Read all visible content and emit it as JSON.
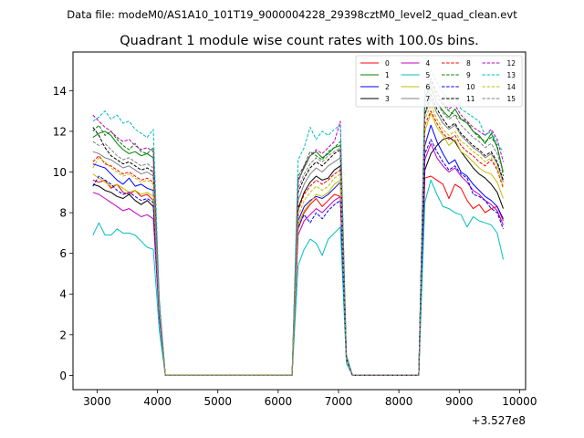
{
  "header_note": "Data file: modeM0/AS1A10_101T19_9000004228_29398cztM0_level2_quad_clean.evt",
  "chart_data": {
    "type": "line",
    "title": "Quadrant 1 module wise count rates with 100.0s bins.",
    "xlabel": "",
    "ylabel": "",
    "x_offset_label": "+3.527e8",
    "xlim": [
      2600,
      10100
    ],
    "ylim": [
      -0.7,
      15.9
    ],
    "x_ticks": [
      3000,
      4000,
      5000,
      6000,
      7000,
      8000,
      9000,
      10000
    ],
    "x_tick_labels": [
      "3000",
      "4000",
      "5000",
      "6000",
      "7000",
      "8000",
      "9000",
      "10000"
    ],
    "y_ticks": [
      0,
      2,
      4,
      6,
      8,
      10,
      12,
      14
    ],
    "y_tick_labels": [
      "0",
      "2",
      "4",
      "6",
      "8",
      "10",
      "12",
      "14"
    ],
    "x": [
      2930,
      3030,
      3130,
      3230,
      3330,
      3430,
      3530,
      3630,
      3730,
      3830,
      3930,
      4030,
      4130,
      4230,
      6130,
      6230,
      6330,
      6430,
      6530,
      6630,
      6730,
      6830,
      6930,
      7030,
      7130,
      7230,
      7330,
      8230,
      8330,
      8430,
      8530,
      8630,
      8730,
      8830,
      8930,
      9030,
      9130,
      9230,
      9330,
      9430,
      9530,
      9630,
      9730
    ],
    "series": [
      {
        "name": "0",
        "color": "#ff0000",
        "dash": "solid",
        "values": [
          9.6,
          9.5,
          9.6,
          9.2,
          9.4,
          9.0,
          8.9,
          9.1,
          8.8,
          8.9,
          8.6,
          3.0,
          0,
          0,
          0,
          0,
          7.2,
          8.0,
          8.4,
          8.7,
          8.3,
          8.6,
          8.9,
          8.8,
          0.8,
          0,
          0,
          0,
          0,
          9.7,
          9.8,
          9.6,
          9.4,
          8.7,
          9.4,
          9.2,
          8.6,
          8.2,
          8.4,
          8.0,
          8.2,
          8.3,
          7.6
        ]
      },
      {
        "name": "1",
        "color": "#008000",
        "dash": "solid",
        "values": [
          11.7,
          11.9,
          12.0,
          11.8,
          11.4,
          11.1,
          10.9,
          11.0,
          10.8,
          10.9,
          10.7,
          3.4,
          0,
          0,
          0,
          0,
          9.6,
          10.2,
          10.8,
          11.0,
          10.7,
          10.9,
          11.2,
          11.3,
          0.9,
          0,
          0,
          0,
          0,
          13.7,
          14.2,
          13.4,
          13.0,
          12.7,
          13.1,
          12.6,
          12.4,
          12.0,
          11.8,
          11.4,
          11.9,
          11.2,
          10.0
        ]
      },
      {
        "name": "2",
        "color": "#0000ff",
        "dash": "solid",
        "values": [
          10.4,
          10.3,
          10.2,
          9.9,
          9.6,
          9.4,
          9.7,
          9.3,
          9.4,
          9.2,
          9.1,
          3.2,
          0,
          0,
          0,
          0,
          7.6,
          8.3,
          8.6,
          8.8,
          8.7,
          8.9,
          9.2,
          9.5,
          0.8,
          0,
          0,
          0,
          0,
          11.3,
          12.3,
          11.5,
          10.9,
          10.4,
          10.6,
          10.0,
          9.8,
          9.4,
          9.1,
          8.8,
          8.6,
          8.3,
          7.7
        ]
      },
      {
        "name": "3",
        "color": "#000000",
        "dash": "solid",
        "values": [
          9.4,
          9.3,
          9.1,
          9.0,
          8.8,
          8.7,
          8.9,
          8.6,
          8.4,
          8.6,
          8.3,
          2.9,
          0,
          0,
          0,
          0,
          8.2,
          9.0,
          9.5,
          9.8,
          9.6,
          9.7,
          10.1,
          10.3,
          0.9,
          0,
          0,
          0,
          0,
          10.1,
          10.9,
          11.3,
          11.6,
          11.7,
          11.5,
          11.0,
          10.6,
          10.2,
          9.9,
          9.7,
          9.4,
          9.0,
          8.2
        ]
      },
      {
        "name": "4",
        "color": "#c000c0",
        "dash": "solid",
        "values": [
          9.0,
          8.9,
          8.7,
          8.5,
          8.3,
          8.1,
          8.2,
          8.0,
          7.8,
          7.9,
          7.7,
          2.8,
          0,
          0,
          0,
          0,
          6.9,
          7.6,
          7.9,
          8.2,
          8.0,
          8.3,
          8.6,
          8.8,
          0.8,
          0,
          0,
          0,
          0,
          10.6,
          11.4,
          10.7,
          10.3,
          10.0,
          10.2,
          9.8,
          9.5,
          9.1,
          8.9,
          8.6,
          8.4,
          8.1,
          7.4
        ]
      },
      {
        "name": "5",
        "color": "#00bfbf",
        "dash": "solid",
        "values": [
          6.9,
          7.5,
          6.9,
          6.9,
          7.2,
          7.0,
          7.0,
          6.9,
          6.6,
          6.3,
          6.2,
          2.2,
          0,
          0,
          0,
          0,
          5.4,
          6.2,
          6.7,
          6.5,
          5.9,
          6.7,
          7.0,
          7.3,
          0.6,
          0,
          0,
          0,
          0,
          8.5,
          9.6,
          8.9,
          8.3,
          8.2,
          8.0,
          7.9,
          7.3,
          7.8,
          7.6,
          7.5,
          7.4,
          7.0,
          5.7
        ]
      },
      {
        "name": "6",
        "color": "#bfbf00",
        "dash": "solid",
        "values": [
          9.9,
          9.7,
          9.5,
          9.3,
          9.4,
          9.2,
          9.0,
          9.1,
          8.9,
          9.0,
          8.8,
          3.1,
          0,
          0,
          0,
          0,
          7.4,
          8.1,
          8.5,
          8.9,
          8.8,
          9.0,
          9.4,
          9.6,
          0.8,
          0,
          0,
          0,
          0,
          12.0,
          12.9,
          12.2,
          11.8,
          11.3,
          11.6,
          11.0,
          10.8,
          10.5,
          10.2,
          10.0,
          9.9,
          9.5,
          8.7
        ]
      },
      {
        "name": "7",
        "color": "#808080",
        "dash": "solid",
        "values": [
          11.0,
          10.9,
          10.7,
          10.6,
          10.4,
          10.2,
          10.3,
          10.1,
          9.9,
          10.0,
          9.8,
          3.3,
          0,
          0,
          0,
          0,
          8.6,
          9.4,
          9.9,
          10.2,
          10.0,
          10.3,
          10.5,
          10.7,
          0.9,
          0,
          0,
          0,
          0,
          12.8,
          13.6,
          12.9,
          12.4,
          12.1,
          12.3,
          11.8,
          11.5,
          11.2,
          11.0,
          10.7,
          10.9,
          10.4,
          9.5
        ]
      },
      {
        "name": "8",
        "color": "#ff0000",
        "dash": "dashed",
        "values": [
          10.5,
          10.8,
          10.4,
          10.3,
          10.1,
          9.9,
          10.0,
          9.8,
          9.6,
          9.7,
          9.5,
          3.2,
          0,
          0,
          0,
          0,
          8.1,
          8.9,
          9.3,
          9.6,
          9.4,
          9.6,
          9.9,
          10.1,
          0.9,
          0,
          0,
          0,
          0,
          12.3,
          13.0,
          12.4,
          11.9,
          11.6,
          11.8,
          11.3,
          11.0,
          10.8,
          10.5,
          10.3,
          10.6,
          10.1,
          9.2
        ]
      },
      {
        "name": "9",
        "color": "#008000",
        "dash": "dashed",
        "values": [
          12.0,
          12.3,
          11.8,
          12.0,
          11.6,
          11.3,
          11.1,
          11.4,
          11.0,
          10.9,
          11.2,
          3.5,
          0,
          0,
          0,
          0,
          9.8,
          10.3,
          11.0,
          10.8,
          10.6,
          11.0,
          11.2,
          11.5,
          0.9,
          0,
          0,
          0,
          0,
          13.5,
          14.5,
          13.7,
          13.3,
          13.0,
          12.8,
          12.6,
          12.5,
          12.0,
          11.7,
          11.5,
          11.7,
          11.3,
          9.8
        ]
      },
      {
        "name": "10",
        "color": "#0000ff",
        "dash": "dashed",
        "values": [
          9.3,
          9.8,
          9.6,
          9.4,
          9.1,
          8.9,
          9.0,
          8.8,
          8.6,
          8.7,
          8.5,
          2.9,
          0,
          0,
          0,
          0,
          7.3,
          7.9,
          7.5,
          8.0,
          7.7,
          8.1,
          8.4,
          8.6,
          0.8,
          0,
          0,
          0,
          0,
          10.9,
          11.6,
          11.0,
          10.5,
          10.1,
          10.3,
          9.9,
          9.7,
          8.9,
          8.8,
          8.6,
          8.2,
          8.0,
          7.2
        ]
      },
      {
        "name": "11",
        "color": "#000000",
        "dash": "dashed",
        "values": [
          12.2,
          11.8,
          11.2,
          10.8,
          10.6,
          10.4,
          10.5,
          10.3,
          10.1,
          10.2,
          10.0,
          3.4,
          0,
          0,
          0,
          0,
          9.0,
          9.7,
          10.2,
          10.5,
          10.3,
          10.6,
          10.9,
          11.1,
          0.9,
          0,
          0,
          0,
          0,
          12.9,
          13.8,
          13.1,
          12.6,
          12.2,
          12.4,
          11.9,
          11.6,
          11.3,
          11.1,
          10.8,
          11.0,
          10.5,
          9.6
        ]
      },
      {
        "name": "12",
        "color": "#c000c0",
        "dash": "dashed",
        "values": [
          12.8,
          12.5,
          12.2,
          12.0,
          11.7,
          11.5,
          11.6,
          11.3,
          11.1,
          11.2,
          11.0,
          3.6,
          0,
          0,
          0,
          0,
          9.5,
          10.3,
          10.8,
          11.1,
          10.9,
          11.2,
          11.5,
          12.5,
          1.0,
          0,
          0,
          0,
          0,
          13.4,
          14.6,
          13.9,
          13.4,
          13.1,
          13.3,
          12.8,
          12.5,
          12.2,
          12.0,
          11.8,
          12.1,
          11.6,
          10.5
        ]
      },
      {
        "name": "13",
        "color": "#00bfbf",
        "dash": "dashed",
        "values": [
          12.5,
          12.7,
          13.0,
          12.6,
          12.8,
          12.4,
          12.5,
          12.1,
          11.9,
          11.7,
          12.1,
          3.8,
          0,
          0,
          0,
          0,
          10.6,
          11.2,
          12.2,
          11.6,
          12.0,
          11.8,
          12.1,
          12.3,
          1.0,
          0,
          0,
          0,
          0,
          14.0,
          15.0,
          14.4,
          13.9,
          13.5,
          13.7,
          13.1,
          12.9,
          12.7,
          12.5,
          11.8,
          12.0,
          11.4,
          11.0
        ]
      },
      {
        "name": "14",
        "color": "#bfbf00",
        "dash": "dashed",
        "values": [
          10.2,
          10.7,
          10.5,
          10.2,
          10.0,
          9.8,
          9.9,
          9.7,
          9.5,
          9.6,
          9.4,
          3.2,
          0,
          0,
          0,
          0,
          7.8,
          8.6,
          9.0,
          9.3,
          9.1,
          9.3,
          9.7,
          9.9,
          0.8,
          0,
          0,
          0,
          0,
          12.6,
          13.3,
          12.6,
          12.1,
          11.8,
          12.0,
          11.5,
          11.3,
          11.0,
          10.8,
          10.5,
          10.7,
          10.2,
          9.3
        ]
      },
      {
        "name": "15",
        "color": "#808080",
        "dash": "dashed",
        "values": [
          11.5,
          11.3,
          11.4,
          11.1,
          10.8,
          10.6,
          10.7,
          10.5,
          10.3,
          10.4,
          10.2,
          3.4,
          0,
          0,
          0,
          0,
          9.2,
          9.9,
          10.4,
          10.7,
          10.5,
          10.8,
          11.0,
          11.2,
          0.9,
          0,
          0,
          0,
          0,
          13.2,
          14.1,
          13.4,
          12.9,
          12.6,
          12.8,
          12.3,
          12.0,
          11.7,
          11.5,
          11.2,
          11.4,
          10.9,
          10.0
        ]
      }
    ],
    "legend": {
      "position": "top-right",
      "columns": 4
    }
  }
}
